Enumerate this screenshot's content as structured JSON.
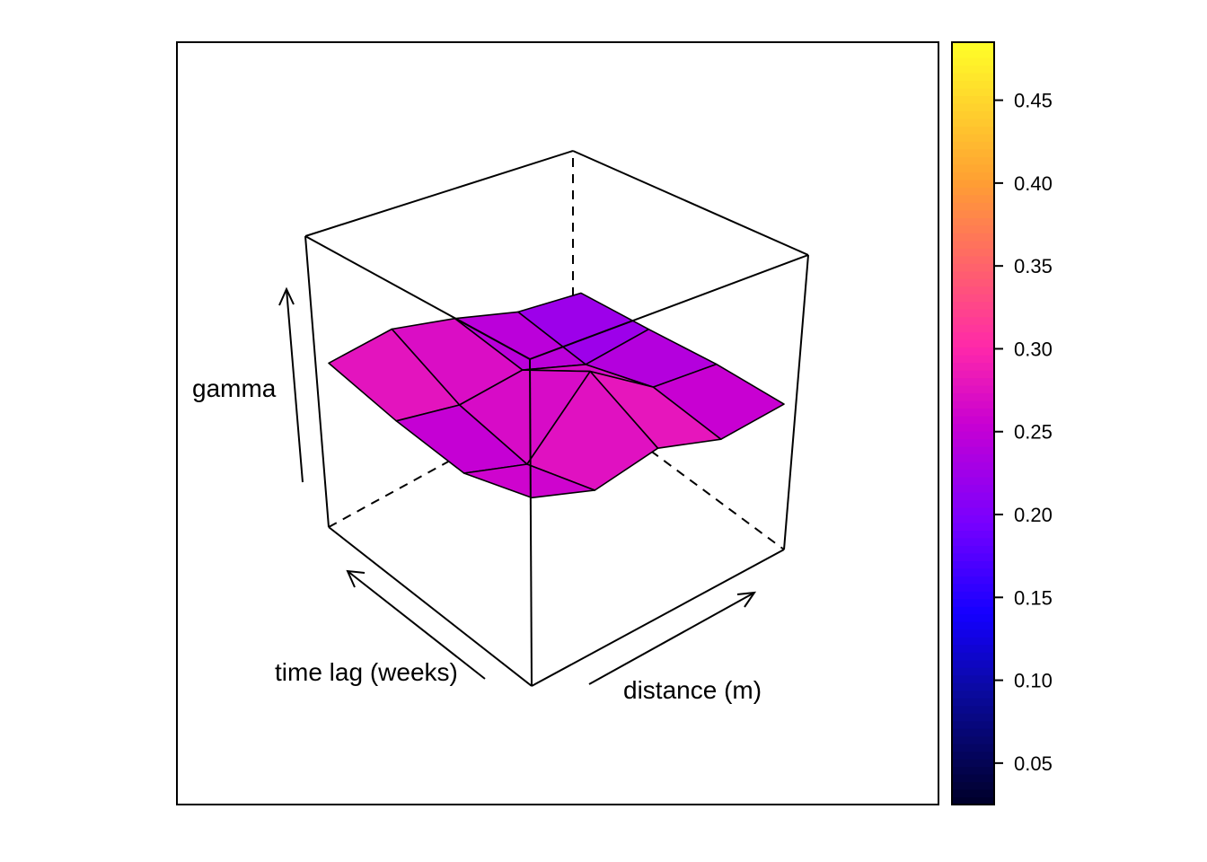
{
  "chart_data": {
    "type": "surface3d",
    "title": "",
    "xlabel": "distance (m)",
    "ylabel": "time lag (weeks)",
    "zlabel": "gamma",
    "zlim": [
      0.025,
      0.485
    ],
    "z": [
      [
        0.29,
        0.3,
        0.27,
        0.23,
        0.21
      ],
      [
        0.27,
        0.25,
        0.26,
        0.22,
        0.23
      ],
      [
        0.26,
        0.23,
        0.33,
        0.26,
        0.25
      ],
      [
        0.29,
        0.26,
        0.28,
        0.25,
        0.26
      ]
    ],
    "colorbar": {
      "min": 0.025,
      "max": 0.485,
      "ticks": [
        0.05,
        0.1,
        0.15,
        0.2,
        0.25,
        0.3,
        0.35,
        0.4,
        0.45
      ],
      "tick_labels": [
        "0.05",
        "0.10",
        "0.15",
        "0.20",
        "0.25",
        "0.30",
        "0.35",
        "0.40",
        "0.45"
      ],
      "colormap": "plasma-like (black → blue → purple → magenta → pink → orange → yellow)"
    }
  }
}
